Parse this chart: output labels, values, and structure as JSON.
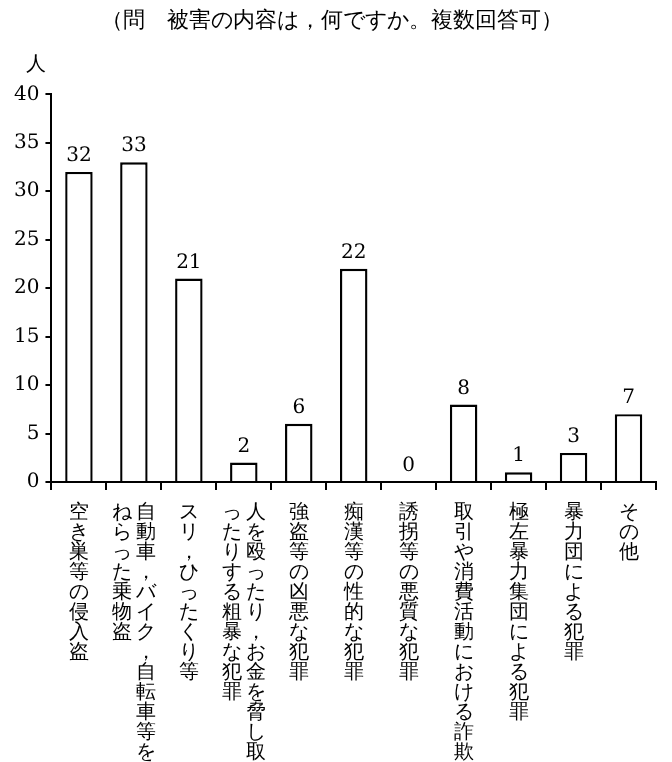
{
  "chart_data": {
    "type": "bar",
    "title": "（問　被害の内容は，何ですか。複数回答可）",
    "ylabel": "人",
    "categories": [
      "空き巣等の侵入盗",
      "自動車，バイク，自転車等をねらった乗物盗",
      "スリ，ひったくり等",
      "人を殴ったり，お金を脅し取ったりする粗暴な犯罪",
      "強盗等の凶悪な犯罪",
      "痴漢等の性的な犯罪",
      "誘拐等の悪質な犯罪",
      "取引や消費活動における詐欺",
      "極左暴力集団による犯罪",
      "暴力団による犯罪",
      "その他"
    ],
    "values": [
      32,
      33,
      21,
      2,
      6,
      22,
      0,
      8,
      1,
      3,
      7
    ],
    "color": "#ffffff",
    "ylim": [
      0,
      40
    ],
    "yticks": [
      0,
      5,
      10,
      15,
      20,
      25,
      30,
      35,
      40
    ],
    "grid": false,
    "legend": false,
    "data_labels": true
  }
}
